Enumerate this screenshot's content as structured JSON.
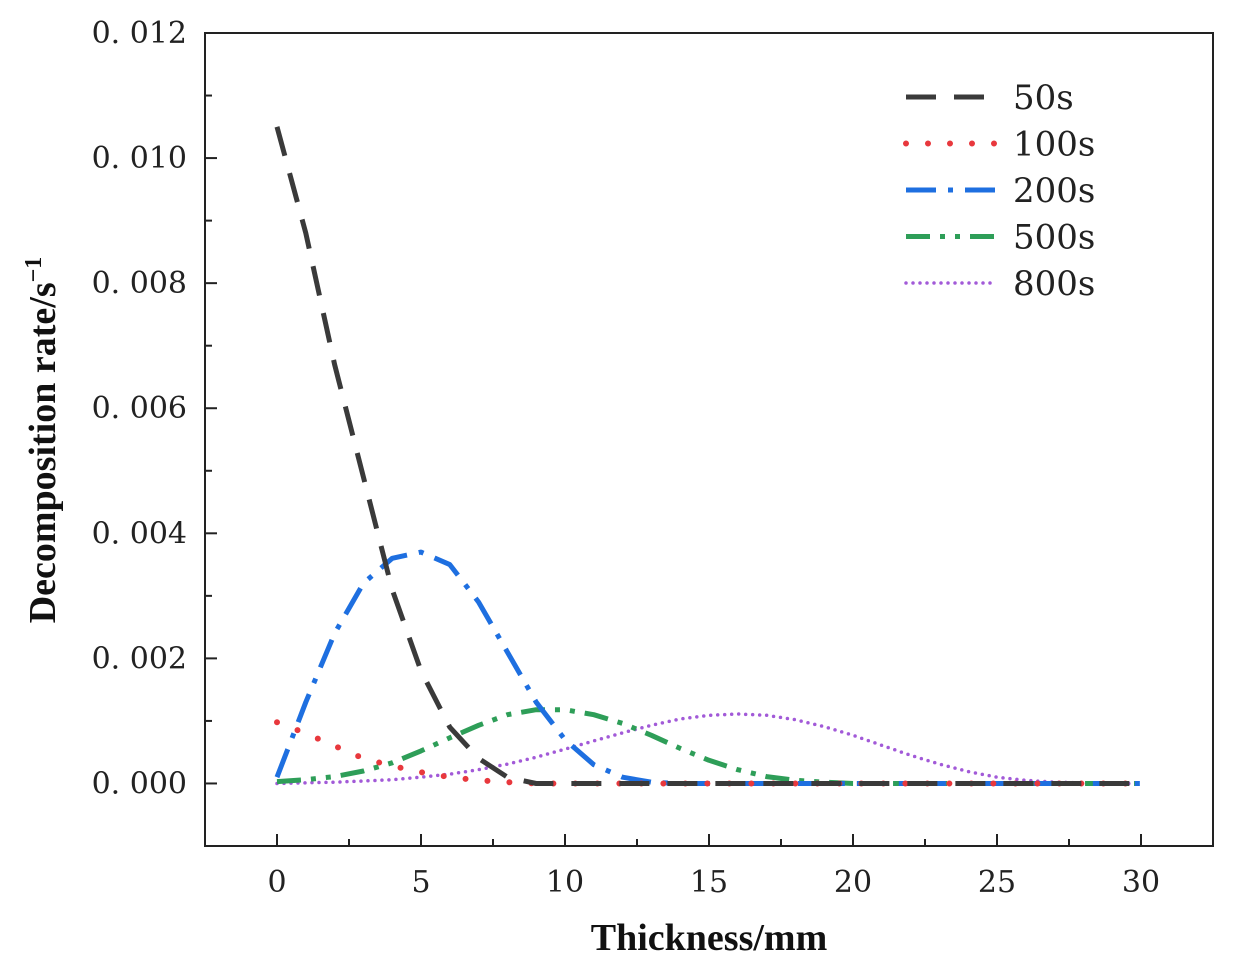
{
  "chart_data": {
    "type": "line",
    "title": "",
    "xlabel": "Thickness/mm",
    "ylabel_main": "Decomposition rate/s",
    "ylabel_sup": "−1",
    "xlim": [
      -2.5,
      32.5
    ],
    "ylim": [
      -0.001,
      0.012
    ],
    "xticks": [
      0,
      5,
      10,
      15,
      20,
      25,
      30
    ],
    "xtick_labels": [
      "0",
      "5",
      "10",
      "15",
      "20",
      "25",
      "30"
    ],
    "yticks": [
      0.0,
      0.002,
      0.004,
      0.006,
      0.008,
      0.01,
      0.012
    ],
    "ytick_labels": [
      "0. 000",
      "0. 002",
      "0. 004",
      "0. 006",
      "0. 008",
      "0. 010",
      "0. 012"
    ],
    "legend_position": "top-right",
    "x": [
      0,
      1,
      2,
      3,
      4,
      5,
      6,
      7,
      8,
      9,
      10,
      11,
      12,
      13,
      14,
      15,
      16,
      17,
      18,
      19,
      20,
      21,
      22,
      23,
      24,
      25,
      26,
      27,
      28,
      29,
      30
    ],
    "series": [
      {
        "name": "50s",
        "color": "#3a3a3a",
        "style": "dashed",
        "values": [
          0.0105,
          0.0088,
          0.0067,
          0.0049,
          0.0031,
          0.0018,
          0.0009,
          0.0004,
          0.0001,
          0.0,
          0.0,
          0.0,
          0.0,
          0.0,
          0.0,
          0.0,
          0.0,
          0.0,
          0.0,
          0.0,
          0.0,
          0.0,
          0.0,
          0.0,
          0.0,
          0.0,
          0.0,
          0.0,
          0.0,
          0.0,
          0.0
        ]
      },
      {
        "name": "100s",
        "color": "#e8383d",
        "style": "dotted-sparse",
        "values": [
          0.00098,
          0.0008,
          0.0006,
          0.0004,
          0.00028,
          0.00018,
          0.0001,
          5e-05,
          2e-05,
          0.0,
          0.0,
          0.0,
          0.0,
          0.0,
          0.0,
          0.0,
          0.0,
          0.0,
          0.0,
          0.0,
          0.0,
          0.0,
          0.0,
          0.0,
          0.0,
          0.0,
          0.0,
          0.0,
          0.0,
          0.0,
          0.0
        ]
      },
      {
        "name": "200s",
        "color": "#1e6fe0",
        "style": "dash-dot",
        "values": [
          0.0001,
          0.0013,
          0.0024,
          0.0032,
          0.0036,
          0.0037,
          0.0035,
          0.0029,
          0.0021,
          0.0013,
          0.0007,
          0.0003,
          0.0001,
          2e-05,
          0.0,
          0.0,
          0.0,
          0.0,
          0.0,
          0.0,
          0.0,
          0.0,
          0.0,
          0.0,
          0.0,
          0.0,
          0.0,
          0.0,
          0.0,
          0.0,
          0.0
        ]
      },
      {
        "name": "500s",
        "color": "#2e9e58",
        "style": "dash-dot-dot",
        "values": [
          3e-05,
          6e-05,
          0.00011,
          0.0002,
          0.00033,
          0.00052,
          0.00073,
          0.00093,
          0.0011,
          0.00118,
          0.00118,
          0.0011,
          0.00096,
          0.00077,
          0.00056,
          0.00037,
          0.00022,
          0.00011,
          5e-05,
          2e-05,
          0.0,
          0.0,
          0.0,
          0.0,
          0.0,
          0.0,
          0.0,
          0.0,
          0.0,
          0.0,
          0.0
        ]
      },
      {
        "name": "800s",
        "color": "#a25ad8",
        "style": "dotted-dense",
        "values": [
          0.0,
          1e-05,
          2e-05,
          4e-05,
          6e-05,
          0.0001,
          0.00015,
          0.00022,
          0.00031,
          0.00042,
          0.00055,
          0.00068,
          0.00081,
          0.00093,
          0.00103,
          0.00109,
          0.00111,
          0.00109,
          0.00102,
          0.00091,
          0.00077,
          0.00061,
          0.00045,
          0.00031,
          0.00019,
          0.0001,
          5e-05,
          2e-05,
          1e-05,
          0.0,
          0.0
        ]
      }
    ]
  }
}
